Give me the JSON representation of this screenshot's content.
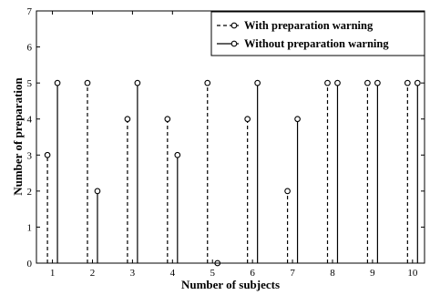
{
  "chart_data": {
    "type": "stem",
    "xlabel": "Number of subjects",
    "ylabel": "Number of preparation",
    "xlim": [
      0.6,
      10.3
    ],
    "ylim": [
      0,
      7
    ],
    "xticks": [
      1,
      2,
      3,
      4,
      5,
      6,
      7,
      8,
      9,
      10
    ],
    "yticks": [
      0,
      1,
      2,
      3,
      4,
      5,
      6,
      7
    ],
    "grid": false,
    "legend_position": "top-right",
    "series": [
      {
        "name": "With preparation warning",
        "style": "dashed",
        "marker": "open-circle",
        "color": "#000000",
        "x": [
          0.875,
          1.875,
          2.875,
          3.875,
          4.875,
          5.875,
          6.875,
          7.875,
          8.875,
          9.875
        ],
        "values": [
          3,
          5,
          4,
          4,
          5,
          4,
          2,
          5,
          5,
          5
        ]
      },
      {
        "name": "Without preparation warning",
        "style": "solid",
        "marker": "open-circle",
        "color": "#000000",
        "x": [
          1.125,
          2.125,
          3.125,
          4.125,
          5.125,
          6.125,
          7.125,
          8.125,
          9.125,
          10.125
        ],
        "values": [
          5,
          2,
          5,
          3,
          0,
          5,
          4,
          5,
          5,
          5
        ]
      }
    ]
  }
}
